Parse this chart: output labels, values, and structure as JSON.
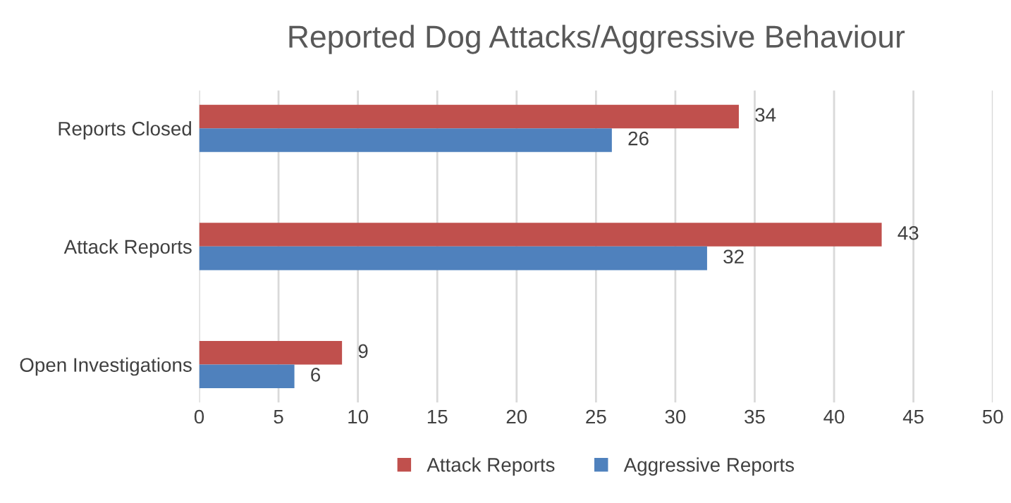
{
  "chart_data": {
    "type": "bar",
    "orientation": "horizontal",
    "title": "Reported Dog Attacks/Aggressive Behaviour",
    "categories": [
      "Reports Closed",
      "Attack Reports",
      "Open Investigations"
    ],
    "series": [
      {
        "name": "Attack Reports",
        "color": "#c0504d",
        "values": [
          34,
          43,
          9
        ]
      },
      {
        "name": "Aggressive Reports",
        "color": "#4f81bd",
        "values": [
          26,
          32,
          6
        ]
      }
    ],
    "xlim": [
      0,
      50
    ],
    "xticks": [
      0,
      5,
      10,
      15,
      20,
      25,
      30,
      35,
      40,
      45,
      50
    ],
    "grid": "x",
    "legend": "bottom",
    "data_labels": true
  }
}
